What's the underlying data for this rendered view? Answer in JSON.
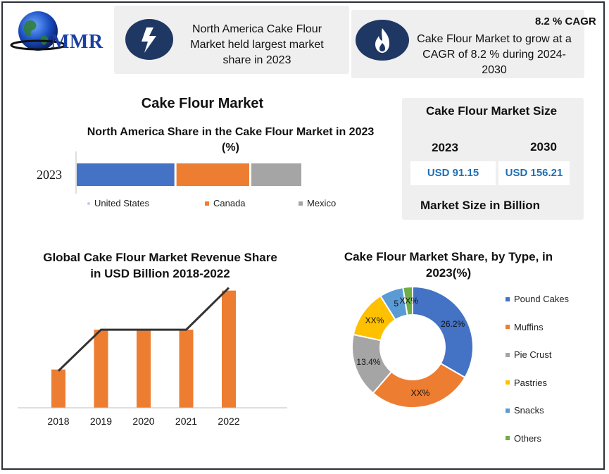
{
  "header": {
    "logo_text": "MMR",
    "box1_lines": [
      "North America Cake Flour",
      "Market held largest market",
      "share in 2023"
    ],
    "box2_badge": "8.2 % CAGR",
    "box2_lines": [
      "Cake Flour Market to grow at a",
      "CAGR of 8.2 % during 2024-",
      "2030"
    ]
  },
  "market_size": {
    "title": "Cake Flour Market Size",
    "years": [
      "2023",
      "2030"
    ],
    "values": [
      "USD 91.15",
      "USD 156.21"
    ],
    "footer": "Market Size in Billion"
  },
  "main_title": "Cake Flour Market",
  "colors": {
    "blue": "#4472c4",
    "orange": "#ed7d31",
    "gray": "#a5a5a5",
    "yellow": "#ffc000",
    "lightblue": "#5b9bd5",
    "green": "#70ad47",
    "navy": "#1f3763"
  },
  "chart_data": [
    {
      "type": "bar",
      "orientation": "horizontal-stacked",
      "title": "North America Share in the Cake Flour Market in 2023 (%)",
      "categories": [
        "2023"
      ],
      "series": [
        {
          "name": "United States",
          "values": [
            44
          ]
        },
        {
          "name": "Canada",
          "values": [
            33
          ]
        },
        {
          "name": "Mexico",
          "values": [
            23
          ]
        }
      ],
      "legend": "bottom"
    },
    {
      "type": "bar",
      "title": "Global Cake Flour Market Revenue Share in USD Billion 2018-2022",
      "categories": [
        "2018",
        "2019",
        "2020",
        "2021",
        "2022"
      ],
      "values": [
        50,
        102,
        102,
        102,
        153
      ],
      "line_values": [
        50,
        102,
        102,
        102,
        153
      ],
      "ylim": [
        0,
        160
      ],
      "grid": false
    },
    {
      "type": "pie",
      "donut": true,
      "title": "Cake Flour Market Share, by Type, in 2023(%)",
      "labels": [
        "Pound Cakes",
        "Muffins",
        "Pie Crust",
        "Pastries",
        "Snacks",
        "Others"
      ],
      "values": [
        26.2,
        22,
        13.4,
        10,
        5,
        2
      ],
      "slice_labels": [
        "26.2%",
        "XX%",
        "13.4%",
        "XX%",
        "5",
        "XX%"
      ],
      "legend": "right"
    }
  ]
}
